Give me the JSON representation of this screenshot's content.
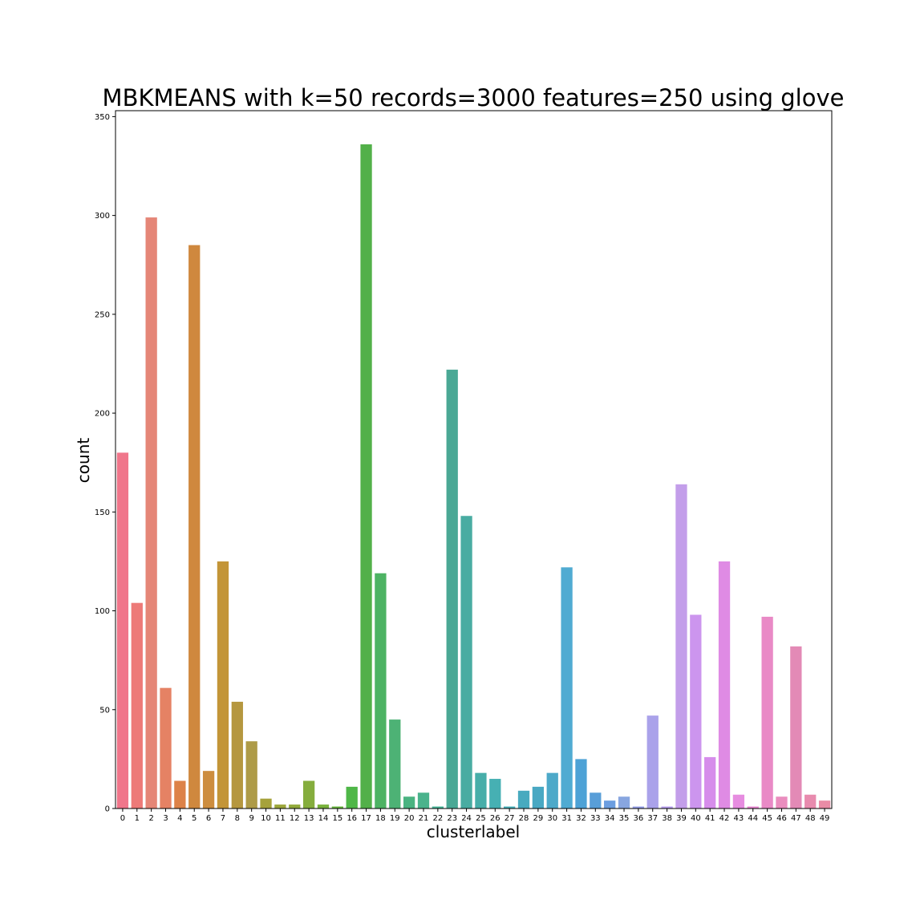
{
  "chart_data": {
    "type": "bar",
    "title": "MBKMEANS with k=50 records=3000 features=250 using glove",
    "xlabel": "clusterlabel",
    "ylabel": "count",
    "ylim": [
      0,
      353
    ],
    "yticks": [
      0,
      50,
      100,
      150,
      200,
      250,
      300,
      350
    ],
    "grid": false,
    "categories": [
      "0",
      "1",
      "2",
      "3",
      "4",
      "5",
      "6",
      "7",
      "8",
      "9",
      "10",
      "11",
      "12",
      "13",
      "14",
      "15",
      "16",
      "17",
      "18",
      "19",
      "20",
      "21",
      "22",
      "23",
      "24",
      "25",
      "26",
      "27",
      "28",
      "29",
      "30",
      "31",
      "32",
      "33",
      "34",
      "35",
      "36",
      "37",
      "38",
      "39",
      "40",
      "41",
      "42",
      "43",
      "44",
      "45",
      "46",
      "47",
      "48",
      "49"
    ],
    "values": [
      180,
      104,
      299,
      61,
      14,
      285,
      19,
      125,
      54,
      34,
      5,
      2,
      2,
      14,
      2,
      1,
      11,
      336,
      119,
      45,
      6,
      8,
      1,
      222,
      148,
      18,
      15,
      1,
      9,
      11,
      18,
      122,
      25,
      8,
      4,
      6,
      1,
      47,
      1,
      164,
      98,
      26,
      125,
      7,
      1,
      97,
      6,
      82,
      7,
      4
    ],
    "colors": [
      "#f0768b",
      "#ed7a78",
      "#e58677",
      "#e58264",
      "#dd8248",
      "#cf883e",
      "#cd8d3e",
      "#c39538",
      "#b5973f",
      "#ae9b47",
      "#a6a23b",
      "#9ca63b",
      "#92aa3b",
      "#85ad3d",
      "#79b23c",
      "#67b53d",
      "#4fb748",
      "#52b049",
      "#4db363",
      "#4db275",
      "#4ab381",
      "#4ab38c",
      "#47b497",
      "#4aa895",
      "#49aca2",
      "#47aea9",
      "#46b0b3",
      "#47b0ba",
      "#48aabf",
      "#49a8c3",
      "#4da9c9",
      "#50abd2",
      "#4da2d6",
      "#589ed8",
      "#6c9ee0",
      "#88a6e0",
      "#939ee8",
      "#aaa2ea",
      "#b79ff0",
      "#c39eea",
      "#cc95ee",
      "#d68deb",
      "#df8be4",
      "#e68ce0",
      "#ea88d3",
      "#e98ac6",
      "#ea8dbe",
      "#e38ab6",
      "#e88bae",
      "#e98ca6"
    ]
  }
}
